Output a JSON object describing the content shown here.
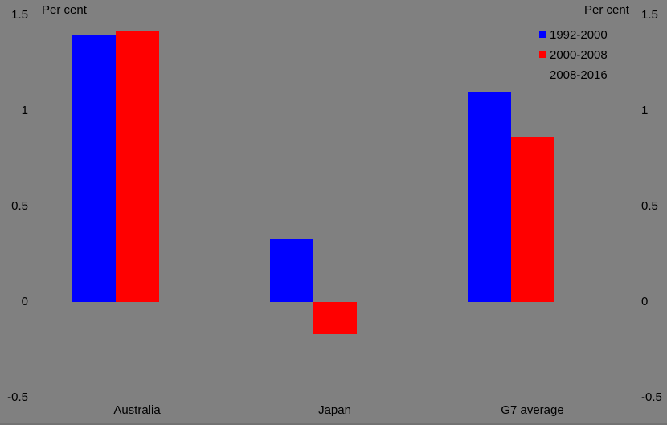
{
  "page": {
    "background_color": "#808080",
    "text_color": "#000000",
    "bottom_strip_color": "#737373"
  },
  "chart_data": {
    "type": "bar",
    "title": "",
    "axis_title_left": "Per cent",
    "axis_title_right": "Per cent",
    "categories": [
      "Australia",
      "Japan",
      "G7 average"
    ],
    "series": [
      {
        "name": "1992-2000",
        "color": "#0000ff",
        "values": [
          1.4,
          0.33,
          1.1
        ]
      },
      {
        "name": "2000-2008",
        "color": "#ff0000",
        "values": [
          1.42,
          -0.17,
          0.86
        ]
      },
      {
        "name": "2008-2016",
        "color": "#808080",
        "values": [
          null,
          null,
          null
        ],
        "note": "legend marker and bars are the same gray as the background (not visible)"
      }
    ],
    "ylim": [
      -0.5,
      1.5
    ],
    "ytick_labels": [
      "1.5",
      "1",
      "0.5",
      "0",
      "-0.5"
    ],
    "ytick_values": [
      1.5,
      1,
      0.5,
      0,
      -0.5
    ],
    "grid": false,
    "legend_position": "top-right"
  }
}
